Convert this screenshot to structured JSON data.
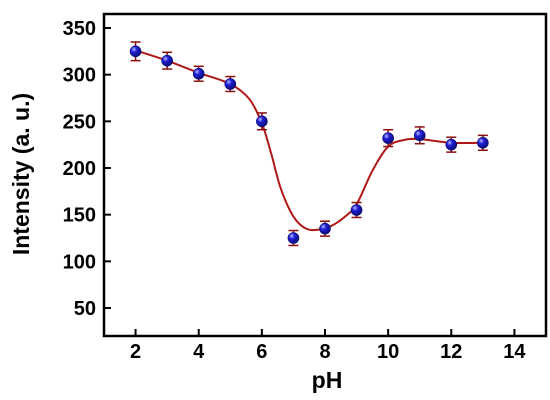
{
  "chart_data": {
    "type": "scatter",
    "xlabel": "pH",
    "ylabel": "Intensity (a. u.)",
    "xlim": [
      1,
      15
    ],
    "ylim": [
      20,
      365
    ],
    "xticks": [
      2,
      4,
      6,
      8,
      10,
      12,
      14
    ],
    "yticks": [
      50,
      100,
      150,
      200,
      250,
      300,
      350
    ],
    "grid": false,
    "marker_color": "#1f1fd6",
    "fit_line_color": "#b01818",
    "error_bar_color": "#8a1010",
    "series": [
      {
        "x": [
          2,
          3,
          4,
          5,
          6,
          7,
          8,
          9,
          10,
          11,
          12,
          13
        ],
        "values": [
          325,
          315,
          301,
          290,
          250,
          125,
          135,
          155,
          232,
          235,
          225,
          227
        ],
        "errors": [
          10,
          9,
          8,
          8,
          9,
          8,
          8,
          8,
          9,
          9,
          8,
          8
        ]
      }
    ],
    "fit_curve": {
      "x": [
        2,
        3,
        4,
        5,
        5.6,
        6,
        6.3,
        6.6,
        7,
        7.4,
        7.8,
        8.2,
        8.6,
        9,
        9.5,
        10,
        10.5,
        11,
        12,
        13
      ],
      "y": [
        326,
        315,
        302,
        290,
        274,
        248,
        215,
        178,
        148,
        135,
        134,
        138,
        147,
        161,
        197,
        223,
        230,
        231,
        227,
        227
      ]
    }
  }
}
